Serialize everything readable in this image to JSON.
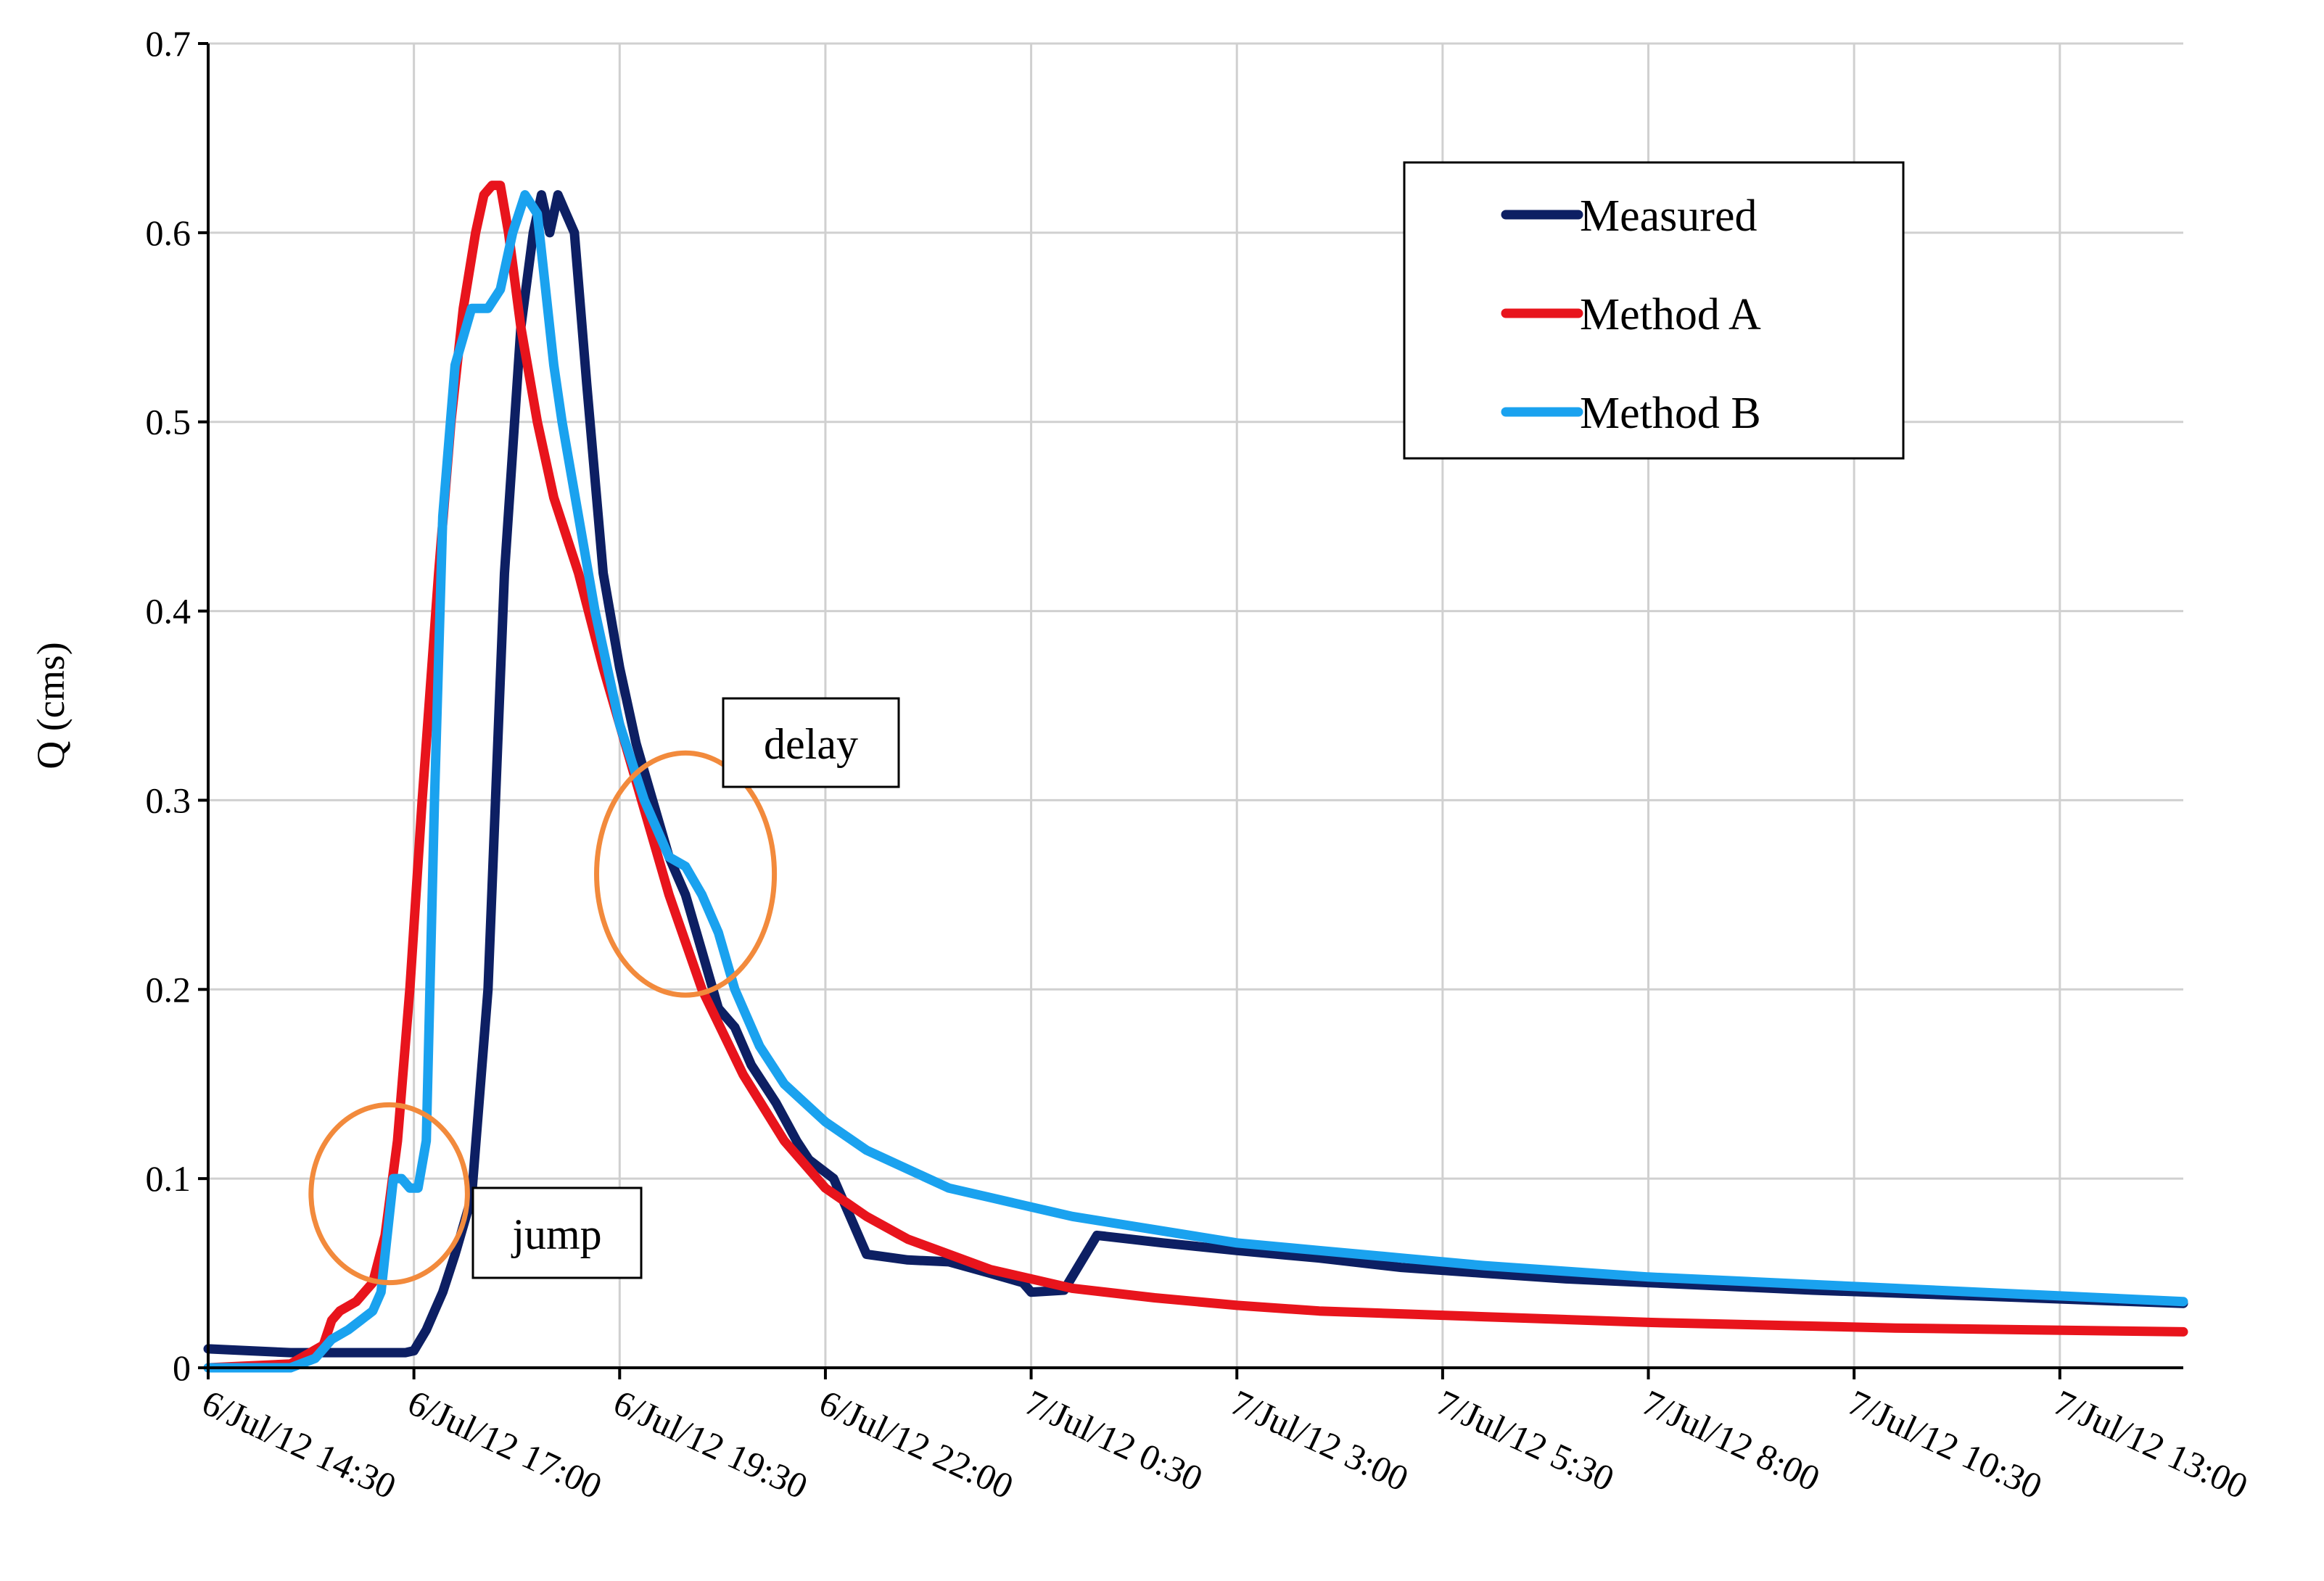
{
  "chart_data": {
    "type": "line",
    "title": "",
    "xlabel": "",
    "ylabel": "Q (cms)",
    "ylim": [
      0,
      0.7
    ],
    "yticks": [
      "0",
      "0.1",
      "0.2",
      "0.3",
      "0.4",
      "0.5",
      "0.6",
      "0.7"
    ],
    "ytick_values": [
      0,
      0.1,
      0.2,
      0.3,
      0.4,
      0.5,
      0.6,
      0.7
    ],
    "xlim_hours": [
      14.5,
      38.5
    ],
    "xticks": [
      "6/Jul/12 14:30",
      "6/Jul/12 17:00",
      "6/Jul/12 19:30",
      "6/Jul/12 22:00",
      "7/Jul/12 0:30",
      "7/Jul/12 3:00",
      "7/Jul/12 5:30",
      "7/Jul/12 8:00",
      "7/Jul/12 10:30",
      "7/Jul/12 13:00"
    ],
    "xtick_hours": [
      14.5,
      17.0,
      19.5,
      22.0,
      24.5,
      27.0,
      29.5,
      32.0,
      34.5,
      37.0
    ],
    "grid": true,
    "legend_position": "top-right",
    "series": [
      {
        "name": "Measured",
        "color": "#0d1f63",
        "x_hours": [
          14.5,
          15.0,
          15.5,
          16.0,
          16.1,
          16.35,
          16.6,
          16.9,
          17.0,
          17.15,
          17.25,
          17.35,
          17.5,
          17.7,
          17.9,
          18.1,
          18.3,
          18.45,
          18.55,
          18.65,
          18.75,
          18.85,
          18.95,
          19.1,
          19.3,
          19.5,
          19.7,
          19.9,
          20.1,
          20.3,
          20.5,
          20.7,
          20.9,
          21.1,
          21.4,
          21.65,
          21.8,
          22.1,
          22.5,
          23.0,
          23.5,
          24.0,
          24.4,
          24.5,
          24.9,
          25.3,
          25.7,
          26.1,
          27.0,
          28.0,
          29.0,
          30.0,
          31.0,
          32.0,
          34.0,
          36.0,
          38.5
        ],
        "values": [
          0.01,
          0.009,
          0.008,
          0.008,
          0.008,
          0.008,
          0.008,
          0.008,
          0.009,
          0.02,
          0.03,
          0.04,
          0.06,
          0.09,
          0.2,
          0.42,
          0.55,
          0.6,
          0.62,
          0.6,
          0.62,
          0.61,
          0.6,
          0.52,
          0.42,
          0.37,
          0.33,
          0.3,
          0.27,
          0.25,
          0.22,
          0.19,
          0.18,
          0.16,
          0.14,
          0.12,
          0.11,
          0.1,
          0.06,
          0.057,
          0.056,
          0.05,
          0.045,
          0.04,
          0.041,
          0.07,
          0.068,
          0.066,
          0.062,
          0.058,
          0.053,
          0.05,
          0.047,
          0.045,
          0.041,
          0.038,
          0.034
        ]
      },
      {
        "name": "Method A",
        "color": "#e8141c",
        "x_hours": [
          14.5,
          15.5,
          15.9,
          16.0,
          16.1,
          16.3,
          16.5,
          16.65,
          16.8,
          16.95,
          17.1,
          17.3,
          17.45,
          17.6,
          17.75,
          17.85,
          17.95,
          18.05,
          18.15,
          18.3,
          18.5,
          18.7,
          19.0,
          19.3,
          19.7,
          20.1,
          20.5,
          21.0,
          21.5,
          22.0,
          22.5,
          23.0,
          24.0,
          25.0,
          26.0,
          27.0,
          28.0,
          30.0,
          32.0,
          35.0,
          38.5
        ],
        "values": [
          0.0,
          0.002,
          0.012,
          0.025,
          0.03,
          0.035,
          0.045,
          0.07,
          0.12,
          0.2,
          0.3,
          0.42,
          0.5,
          0.56,
          0.6,
          0.62,
          0.625,
          0.625,
          0.6,
          0.55,
          0.5,
          0.46,
          0.42,
          0.37,
          0.31,
          0.25,
          0.2,
          0.155,
          0.12,
          0.095,
          0.08,
          0.068,
          0.052,
          0.042,
          0.037,
          0.033,
          0.03,
          0.027,
          0.024,
          0.021,
          0.019
        ]
      },
      {
        "name": "Method B",
        "color": "#1aa2ef",
        "x_hours": [
          14.5,
          15.5,
          15.8,
          16.0,
          16.2,
          16.35,
          16.5,
          16.6,
          16.75,
          16.85,
          16.95,
          17.05,
          17.15,
          17.25,
          17.35,
          17.5,
          17.7,
          17.9,
          18.05,
          18.2,
          18.35,
          18.5,
          18.6,
          18.7,
          18.8,
          19.0,
          19.2,
          19.5,
          19.8,
          20.1,
          20.3,
          20.5,
          20.7,
          20.9,
          21.2,
          21.5,
          22.0,
          22.5,
          23.0,
          23.5,
          24.0,
          24.5,
          25.0,
          26.0,
          27.0,
          28.0,
          29.0,
          30.0,
          31.0,
          32.0,
          34.0,
          36.0,
          38.5
        ],
        "values": [
          0.0,
          0.0,
          0.005,
          0.015,
          0.02,
          0.025,
          0.03,
          0.04,
          0.1,
          0.1,
          0.095,
          0.095,
          0.12,
          0.3,
          0.45,
          0.53,
          0.56,
          0.56,
          0.57,
          0.6,
          0.62,
          0.61,
          0.57,
          0.53,
          0.5,
          0.45,
          0.4,
          0.34,
          0.3,
          0.27,
          0.265,
          0.25,
          0.23,
          0.2,
          0.17,
          0.15,
          0.13,
          0.115,
          0.105,
          0.095,
          0.09,
          0.085,
          0.08,
          0.073,
          0.066,
          0.062,
          0.058,
          0.054,
          0.051,
          0.048,
          0.044,
          0.04,
          0.035
        ]
      }
    ],
    "annotations": [
      {
        "label": "jump",
        "circle_center": [
          16.7,
          0.092
        ],
        "circle_radius_hours": 0.95,
        "circle_radius_y": 0.047
      },
      {
        "label": "delay",
        "circle_center": [
          20.3,
          0.261
        ],
        "circle_radius_hours": 1.08,
        "circle_radius_y": 0.064
      }
    ],
    "annotation_color": "#f28a3c"
  }
}
